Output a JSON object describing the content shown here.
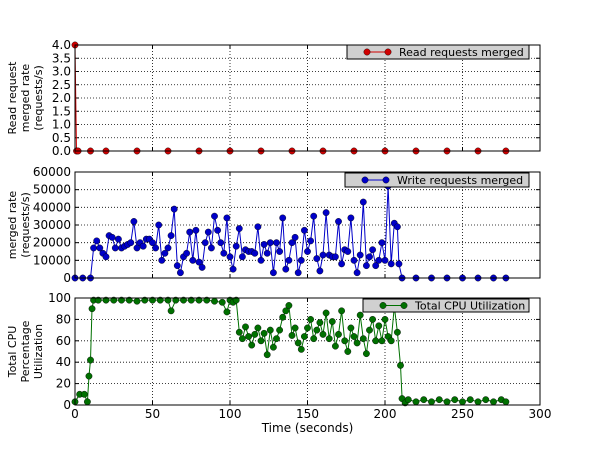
{
  "chart_data": [
    {
      "type": "line",
      "ylabel_lines": [
        "Read request",
        "merged rate",
        "(requests/s)"
      ],
      "xlim": [
        0,
        300
      ],
      "ylim": [
        0,
        4
      ],
      "yticks": [
        "0.0",
        "0.5",
        "1.0",
        "1.5",
        "2.0",
        "2.5",
        "3.0",
        "3.5",
        "4.0"
      ],
      "grid": true,
      "legend_position": "top-right",
      "color": "#d00000",
      "series": [
        {
          "name": "Read requests merged",
          "points": [
            [
              0,
              4
            ],
            [
              1,
              0
            ],
            [
              2,
              0
            ],
            [
              10,
              0
            ],
            [
              20,
              0
            ],
            [
              40,
              0
            ],
            [
              60,
              0
            ],
            [
              80,
              0
            ],
            [
              100,
              0
            ],
            [
              120,
              0
            ],
            [
              140,
              0
            ],
            [
              160,
              0
            ],
            [
              180,
              0
            ],
            [
              200,
              0
            ],
            [
              220,
              0
            ],
            [
              240,
              0
            ],
            [
              260,
              0
            ],
            [
              278,
              0
            ]
          ]
        }
      ]
    },
    {
      "type": "line",
      "ylabel_lines": [
        "merged rate",
        "(requests/s)"
      ],
      "xlim": [
        0,
        300
      ],
      "ylim": [
        0,
        60000
      ],
      "yticks": [
        "0",
        "10000",
        "20000",
        "30000",
        "40000",
        "50000",
        "60000"
      ],
      "grid": true,
      "legend_position": "top-right",
      "color": "#0000c8",
      "series": [
        {
          "name": "Write requests merged",
          "points": [
            [
              0,
              0
            ],
            [
              5,
              0
            ],
            [
              10,
              0
            ],
            [
              12,
              17000
            ],
            [
              14,
              21000
            ],
            [
              16,
              17000
            ],
            [
              18,
              14000
            ],
            [
              20,
              12000
            ],
            [
              22,
              24000
            ],
            [
              24,
              23000
            ],
            [
              26,
              17000
            ],
            [
              28,
              22000
            ],
            [
              30,
              17000
            ],
            [
              32,
              18000
            ],
            [
              34,
              19000
            ],
            [
              36,
              20000
            ],
            [
              38,
              32000
            ],
            [
              40,
              17000
            ],
            [
              42,
              20000
            ],
            [
              44,
              18000
            ],
            [
              46,
              22000
            ],
            [
              48,
              22000
            ],
            [
              50,
              20000
            ],
            [
              52,
              17000
            ],
            [
              54,
              30000
            ],
            [
              56,
              10000
            ],
            [
              58,
              14000
            ],
            [
              60,
              17000
            ],
            [
              62,
              24000
            ],
            [
              64,
              39000
            ],
            [
              66,
              7000
            ],
            [
              68,
              3000
            ],
            [
              70,
              12000
            ],
            [
              72,
              14000
            ],
            [
              74,
              26000
            ],
            [
              76,
              10000
            ],
            [
              78,
              27000
            ],
            [
              80,
              9000
            ],
            [
              82,
              6000
            ],
            [
              84,
              20000
            ],
            [
              86,
              26000
            ],
            [
              88,
              17000
            ],
            [
              90,
              35000
            ],
            [
              92,
              27000
            ],
            [
              94,
              20000
            ],
            [
              96,
              14000
            ],
            [
              98,
              34000
            ],
            [
              100,
              12000
            ],
            [
              102,
              5000
            ],
            [
              104,
              18000
            ],
            [
              106,
              28000
            ],
            [
              108,
              12000
            ],
            [
              110,
              16000
            ],
            [
              112,
              15000
            ],
            [
              114,
              15000
            ],
            [
              116,
              14000
            ],
            [
              118,
              29000
            ],
            [
              120,
              10000
            ],
            [
              122,
              19000
            ],
            [
              124,
              14000
            ],
            [
              126,
              20000
            ],
            [
              128,
              3000
            ],
            [
              130,
              20000
            ],
            [
              132,
              15000
            ],
            [
              134,
              34000
            ],
            [
              136,
              5000
            ],
            [
              138,
              10000
            ],
            [
              140,
              20000
            ],
            [
              142,
              23000
            ],
            [
              144,
              3000
            ],
            [
              146,
              10000
            ],
            [
              148,
              27000
            ],
            [
              150,
              15000
            ],
            [
              152,
              21000
            ],
            [
              154,
              35000
            ],
            [
              156,
              11000
            ],
            [
              158,
              4000
            ],
            [
              160,
              13000
            ],
            [
              162,
              37000
            ],
            [
              164,
              13000
            ],
            [
              166,
              12000
            ],
            [
              168,
              12000
            ],
            [
              170,
              32000
            ],
            [
              172,
              8000
            ],
            [
              174,
              16000
            ],
            [
              176,
              15000
            ],
            [
              178,
              34000
            ],
            [
              180,
              10000
            ],
            [
              182,
              3000
            ],
            [
              184,
              13000
            ],
            [
              186,
              43000
            ],
            [
              188,
              7000
            ],
            [
              190,
              12000
            ],
            [
              192,
              16000
            ],
            [
              194,
              7000
            ],
            [
              196,
              10000
            ],
            [
              198,
              20000
            ],
            [
              200,
              10000
            ],
            [
              202,
              52000
            ],
            [
              204,
              8000
            ],
            [
              206,
              31000
            ],
            [
              208,
              29000
            ],
            [
              209,
              8000
            ],
            [
              211,
              0
            ],
            [
              220,
              0
            ],
            [
              230,
              0
            ],
            [
              240,
              0
            ],
            [
              250,
              0
            ],
            [
              260,
              0
            ],
            [
              270,
              0
            ],
            [
              278,
              0
            ]
          ]
        }
      ]
    },
    {
      "type": "line",
      "ylabel_lines": [
        "Total CPU",
        "Percentage",
        "Utilization"
      ],
      "xlabel": "Time (seconds)",
      "xlim": [
        0,
        300
      ],
      "ylim": [
        0,
        100
      ],
      "xticks": [
        "0",
        "50",
        "100",
        "150",
        "200",
        "250",
        "300"
      ],
      "yticks": [
        "0",
        "20",
        "40",
        "60",
        "80",
        "100"
      ],
      "grid": true,
      "legend_position": "top-right",
      "color": "#007000",
      "series": [
        {
          "name": "Total CPU Utilization",
          "points": [
            [
              0,
              3
            ],
            [
              3,
              10
            ],
            [
              6,
              10
            ],
            [
              8,
              3
            ],
            [
              9,
              27
            ],
            [
              10,
              42
            ],
            [
              11,
              90
            ],
            [
              12,
              98
            ],
            [
              15,
              98
            ],
            [
              20,
              98
            ],
            [
              25,
              98
            ],
            [
              30,
              98
            ],
            [
              35,
              98
            ],
            [
              40,
              97
            ],
            [
              45,
              98
            ],
            [
              50,
              98
            ],
            [
              55,
              98
            ],
            [
              60,
              98
            ],
            [
              62,
              88
            ],
            [
              65,
              98
            ],
            [
              70,
              98
            ],
            [
              75,
              98
            ],
            [
              80,
              98
            ],
            [
              85,
              98
            ],
            [
              90,
              97
            ],
            [
              95,
              96
            ],
            [
              98,
              87
            ],
            [
              100,
              98
            ],
            [
              102,
              96
            ],
            [
              104,
              98
            ],
            [
              106,
              68
            ],
            [
              108,
              62
            ],
            [
              110,
              73
            ],
            [
              112,
              64
            ],
            [
              114,
              56
            ],
            [
              116,
              66
            ],
            [
              118,
              72
            ],
            [
              120,
              60
            ],
            [
              122,
              67
            ],
            [
              124,
              47
            ],
            [
              126,
              70
            ],
            [
              128,
              54
            ],
            [
              130,
              62
            ],
            [
              132,
              70
            ],
            [
              134,
              82
            ],
            [
              136,
              88
            ],
            [
              138,
              93
            ],
            [
              140,
              65
            ],
            [
              142,
              72
            ],
            [
              144,
              58
            ],
            [
              146,
              52
            ],
            [
              148,
              64
            ],
            [
              150,
              72
            ],
            [
              152,
              80
            ],
            [
              154,
              62
            ],
            [
              156,
              70
            ],
            [
              158,
              77
            ],
            [
              160,
              66
            ],
            [
              162,
              86
            ],
            [
              164,
              62
            ],
            [
              166,
              78
            ],
            [
              168,
              55
            ],
            [
              170,
              66
            ],
            [
              172,
              88
            ],
            [
              174,
              60
            ],
            [
              176,
              50
            ],
            [
              178,
              72
            ],
            [
              180,
              64
            ],
            [
              182,
              58
            ],
            [
              184,
              84
            ],
            [
              186,
              62
            ],
            [
              188,
              48
            ],
            [
              190,
              70
            ],
            [
              192,
              80
            ],
            [
              194,
              60
            ],
            [
              196,
              74
            ],
            [
              198,
              60
            ],
            [
              200,
              80
            ],
            [
              202,
              64
            ],
            [
              204,
              60
            ],
            [
              206,
              92
            ],
            [
              208,
              68
            ],
            [
              210,
              37
            ],
            [
              211,
              6
            ],
            [
              213,
              2
            ],
            [
              215,
              5
            ],
            [
              220,
              3
            ],
            [
              225,
              5
            ],
            [
              230,
              3
            ],
            [
              235,
              5
            ],
            [
              240,
              3
            ],
            [
              245,
              5
            ],
            [
              250,
              3
            ],
            [
              255,
              5
            ],
            [
              260,
              3
            ],
            [
              265,
              5
            ],
            [
              270,
              3
            ],
            [
              275,
              5
            ],
            [
              278,
              3
            ]
          ]
        }
      ]
    }
  ]
}
